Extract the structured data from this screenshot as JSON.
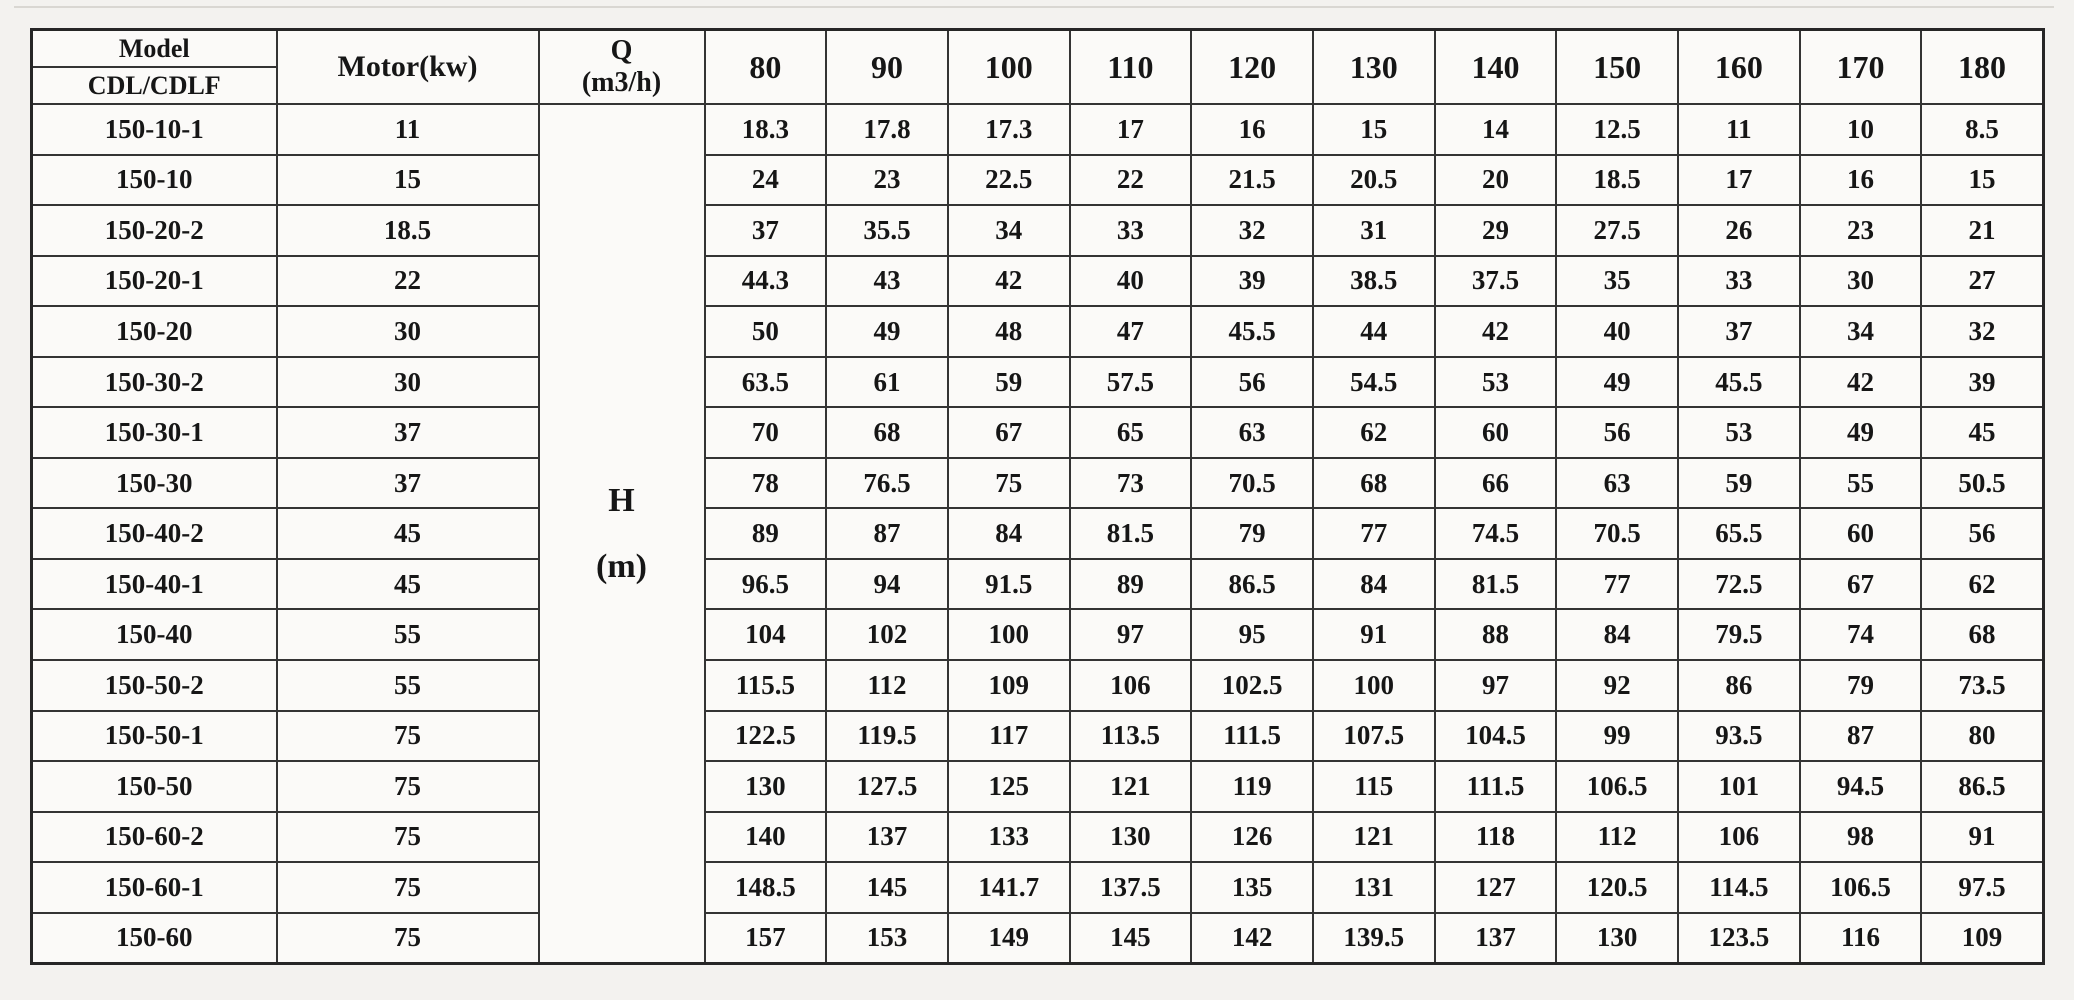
{
  "table": {
    "header": {
      "model_title": "Model",
      "model_subtitle": "CDL/CDLF",
      "motor_label": "Motor(kw)",
      "q_symbol": "Q",
      "q_unit": "(m3/h)",
      "flow_columns": [
        "80",
        "90",
        "100",
        "110",
        "120",
        "130",
        "140",
        "150",
        "160",
        "170",
        "180"
      ]
    },
    "h_symbol": "H",
    "h_unit": "(m)",
    "rows": [
      {
        "model": "150-10-1",
        "motor": "11",
        "values": [
          "18.3",
          "17.8",
          "17.3",
          "17",
          "16",
          "15",
          "14",
          "12.5",
          "11",
          "10",
          "8.5"
        ]
      },
      {
        "model": "150-10",
        "motor": "15",
        "values": [
          "24",
          "23",
          "22.5",
          "22",
          "21.5",
          "20.5",
          "20",
          "18.5",
          "17",
          "16",
          "15"
        ]
      },
      {
        "model": "150-20-2",
        "motor": "18.5",
        "values": [
          "37",
          "35.5",
          "34",
          "33",
          "32",
          "31",
          "29",
          "27.5",
          "26",
          "23",
          "21"
        ]
      },
      {
        "model": "150-20-1",
        "motor": "22",
        "values": [
          "44.3",
          "43",
          "42",
          "40",
          "39",
          "38.5",
          "37.5",
          "35",
          "33",
          "30",
          "27"
        ]
      },
      {
        "model": "150-20",
        "motor": "30",
        "values": [
          "50",
          "49",
          "48",
          "47",
          "45.5",
          "44",
          "42",
          "40",
          "37",
          "34",
          "32"
        ]
      },
      {
        "model": "150-30-2",
        "motor": "30",
        "values": [
          "63.5",
          "61",
          "59",
          "57.5",
          "56",
          "54.5",
          "53",
          "49",
          "45.5",
          "42",
          "39"
        ]
      },
      {
        "model": "150-30-1",
        "motor": "37",
        "values": [
          "70",
          "68",
          "67",
          "65",
          "63",
          "62",
          "60",
          "56",
          "53",
          "49",
          "45"
        ]
      },
      {
        "model": "150-30",
        "motor": "37",
        "values": [
          "78",
          "76.5",
          "75",
          "73",
          "70.5",
          "68",
          "66",
          "63",
          "59",
          "55",
          "50.5"
        ]
      },
      {
        "model": "150-40-2",
        "motor": "45",
        "values": [
          "89",
          "87",
          "84",
          "81.5",
          "79",
          "77",
          "74.5",
          "70.5",
          "65.5",
          "60",
          "56"
        ]
      },
      {
        "model": "150-40-1",
        "motor": "45",
        "values": [
          "96.5",
          "94",
          "91.5",
          "89",
          "86.5",
          "84",
          "81.5",
          "77",
          "72.5",
          "67",
          "62"
        ]
      },
      {
        "model": "150-40",
        "motor": "55",
        "values": [
          "104",
          "102",
          "100",
          "97",
          "95",
          "91",
          "88",
          "84",
          "79.5",
          "74",
          "68"
        ]
      },
      {
        "model": "150-50-2",
        "motor": "55",
        "values": [
          "115.5",
          "112",
          "109",
          "106",
          "102.5",
          "100",
          "97",
          "92",
          "86",
          "79",
          "73.5"
        ]
      },
      {
        "model": "150-50-1",
        "motor": "75",
        "values": [
          "122.5",
          "119.5",
          "117",
          "113.5",
          "111.5",
          "107.5",
          "104.5",
          "99",
          "93.5",
          "87",
          "80"
        ]
      },
      {
        "model": "150-50",
        "motor": "75",
        "values": [
          "130",
          "127.5",
          "125",
          "121",
          "119",
          "115",
          "111.5",
          "106.5",
          "101",
          "94.5",
          "86.5"
        ]
      },
      {
        "model": "150-60-2",
        "motor": "75",
        "values": [
          "140",
          "137",
          "133",
          "130",
          "126",
          "121",
          "118",
          "112",
          "106",
          "98",
          "91"
        ]
      },
      {
        "model": "150-60-1",
        "motor": "75",
        "values": [
          "148.5",
          "145",
          "141.7",
          "137.5",
          "135",
          "131",
          "127",
          "120.5",
          "114.5",
          "106.5",
          "97.5"
        ]
      },
      {
        "model": "150-60",
        "motor": "75",
        "values": [
          "157",
          "153",
          "149",
          "145",
          "142",
          "139.5",
          "137",
          "130",
          "123.5",
          "116",
          "109"
        ]
      }
    ]
  }
}
